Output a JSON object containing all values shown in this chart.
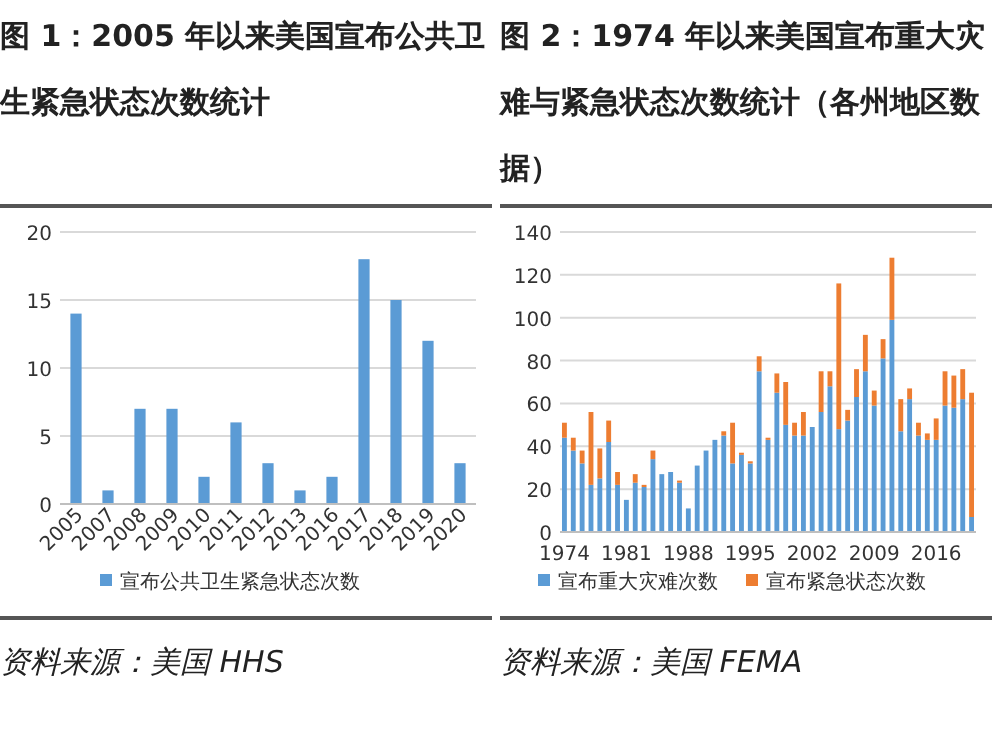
{
  "chart_data": [
    {
      "type": "bar",
      "title": "图 1：2005 年以来美国宣布公共卫生紧急状态次数统计",
      "categories": [
        "2005",
        "2007",
        "2008",
        "2009",
        "2010",
        "2011",
        "2012",
        "2013",
        "2016",
        "2017",
        "2018",
        "2019",
        "2020"
      ],
      "series": [
        {
          "name": "宣布公共卫生紧急状态次数",
          "color": "#5b9bd5",
          "values": [
            14,
            1,
            7,
            7,
            2,
            6,
            3,
            1,
            2,
            18,
            15,
            12,
            3
          ]
        }
      ],
      "ylim": [
        0,
        20
      ],
      "yticks": [
        0,
        5,
        10,
        15,
        20
      ],
      "grid": "y",
      "legend": "bottom",
      "annotations": [
        "资料来源：美国 HHS"
      ]
    },
    {
      "type": "bar",
      "stacked": true,
      "title": "图 2：1974 年以来美国宣布重大灾难与紧急状态次数统计（各州地区数据）",
      "categories": [
        "1974",
        null,
        null,
        null,
        null,
        null,
        null,
        "1981",
        null,
        null,
        null,
        null,
        null,
        null,
        "1988",
        null,
        null,
        null,
        null,
        null,
        null,
        "1995",
        null,
        null,
        null,
        null,
        null,
        null,
        "2002",
        null,
        null,
        null,
        null,
        null,
        null,
        "2009",
        null,
        null,
        null,
        null,
        null,
        null,
        "2016",
        null,
        null,
        null,
        null
      ],
      "series": [
        {
          "name": "宣布重大灾难次数",
          "color": "#5b9bd5",
          "values": [
            44,
            38,
            32,
            22,
            25,
            42,
            22,
            15,
            23,
            21,
            34,
            27,
            28,
            23,
            11,
            31,
            38,
            43,
            45,
            32,
            36,
            32,
            75,
            43,
            65,
            50,
            45,
            45,
            49,
            56,
            68,
            48,
            52,
            63,
            75,
            59,
            81,
            99,
            47,
            62,
            45,
            43,
            43,
            59,
            58,
            62,
            7
          ]
        },
        {
          "name": "宣布紧急状态次数",
          "color": "#ed7d31",
          "values": [
            7,
            6,
            6,
            34,
            14,
            10,
            6,
            0,
            4,
            1,
            4,
            0,
            0,
            1,
            0,
            0,
            0,
            0,
            2,
            19,
            1,
            1,
            7,
            1,
            9,
            20,
            6,
            11,
            0,
            19,
            7,
            68,
            5,
            13,
            17,
            7,
            9,
            29,
            15,
            5,
            6,
            3,
            10,
            16,
            15,
            14,
            58
          ]
        }
      ],
      "ylim": [
        0,
        140
      ],
      "yticks": [
        0,
        20,
        40,
        60,
        80,
        100,
        120,
        140
      ],
      "grid": "y",
      "legend": "bottom",
      "annotations": [
        "资料来源：美国 FEMA"
      ]
    }
  ]
}
